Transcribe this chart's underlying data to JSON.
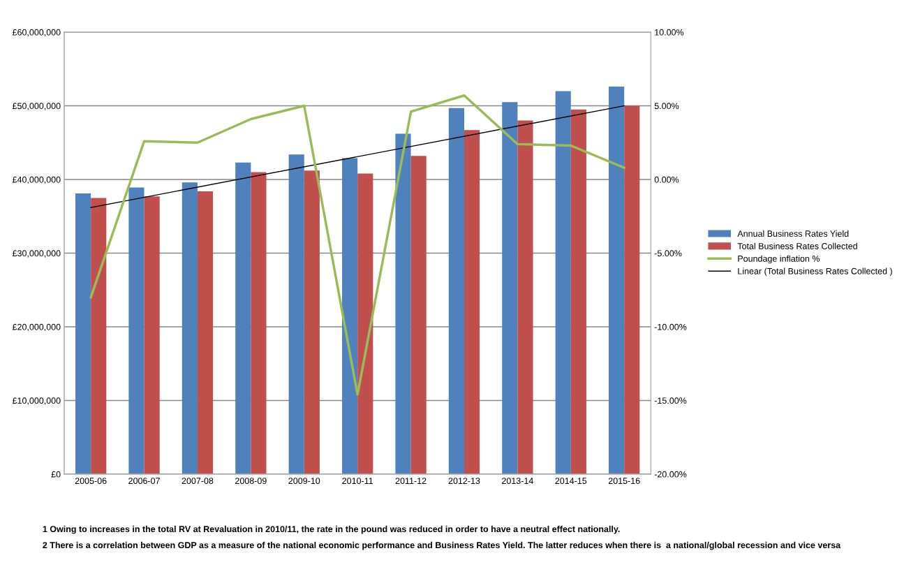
{
  "chart_data": {
    "type": "bar",
    "categories": [
      "2005-06",
      "2006-07",
      "2007-08",
      "2008-09",
      "2009-10",
      "2010-11",
      "2011-12",
      "2012-13",
      "2013-14",
      "2014-15",
      "2015-16"
    ],
    "series": [
      {
        "name": "Annual Business Rates Yield",
        "color": "#4f81bd",
        "values": [
          38100000,
          38900000,
          39600000,
          42300000,
          43400000,
          42900000,
          46200000,
          49700000,
          50500000,
          52000000,
          52600000
        ]
      },
      {
        "name": "Total Business Rates Collected",
        "color": "#c0504d",
        "values": [
          37500000,
          37700000,
          38400000,
          41000000,
          41200000,
          40800000,
          43200000,
          46700000,
          48000000,
          49500000,
          50000000
        ]
      },
      {
        "name": "Poundage inflation %",
        "type": "line",
        "axis": "y2",
        "color": "#9bbb59",
        "values": [
          -8.0,
          2.6,
          2.5,
          4.1,
          5.0,
          -14.6,
          4.6,
          5.7,
          2.4,
          2.3,
          0.8
        ]
      },
      {
        "name": "Linear (Total Business Rates Collected )",
        "type": "line",
        "color": "#000000",
        "values": [
          36200000,
          null,
          null,
          null,
          null,
          null,
          null,
          null,
          null,
          null,
          50000000
        ]
      }
    ],
    "ylim": [
      0,
      60000000
    ],
    "yticks": [
      {
        "value": 0,
        "label": "£0"
      },
      {
        "value": 10000000,
        "label": "£10,000,000"
      },
      {
        "value": 20000000,
        "label": "£20,000,000"
      },
      {
        "value": 30000000,
        "label": "£30,000,000"
      },
      {
        "value": 40000000,
        "label": "£40,000,000"
      },
      {
        "value": 50000000,
        "label": "£50,000,000"
      },
      {
        "value": 60000000,
        "label": "£60,000,000"
      }
    ],
    "y2lim": [
      -20,
      10
    ],
    "y2ticks": [
      {
        "value": -20,
        "label": "-20.00%"
      },
      {
        "value": -15,
        "label": "-15.00%"
      },
      {
        "value": -10,
        "label": "-10.00%"
      },
      {
        "value": -5,
        "label": "-5.00%"
      },
      {
        "value": 0,
        "label": "0.00%"
      },
      {
        "value": 5,
        "label": "5.00%"
      },
      {
        "value": 10,
        "label": "10.00%"
      }
    ],
    "grid": "y",
    "legend": "right",
    "annotations": [
      "1 Owing to increases in the total RV at Revaluation in 2010/11, the rate in the pound was reduced in order to have a neutral effect nationally.",
      "2 There is a correlation between GDP as a measure of the national economic performance and Business Rates Yield. The latter reduces when there is  a national/global recession and vice versa"
    ]
  }
}
